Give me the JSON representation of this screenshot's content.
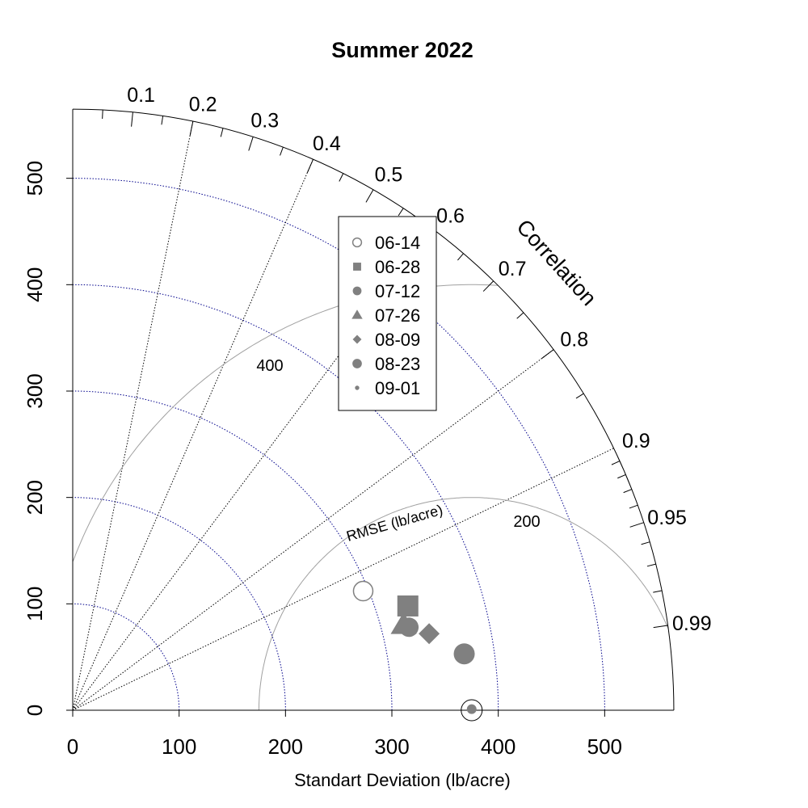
{
  "chart_data": {
    "type": "taylor",
    "title": "Summer 2022",
    "xlabel": "Standart Deviation (lb/acre)",
    "ylabel": "",
    "correlation_label": "Correlation",
    "rmse_label": "RMSE (lb/acre)",
    "sd_range": [
      0,
      565
    ],
    "sd_ticks": [
      0,
      100,
      200,
      300,
      400,
      500
    ],
    "sd_tick_labels": [
      "0",
      "100",
      "200",
      "300",
      "400",
      "500"
    ],
    "sd_arcs": [
      100,
      200,
      300,
      400,
      500
    ],
    "correlation_ticks": [
      0.1,
      0.2,
      0.3,
      0.4,
      0.5,
      0.6,
      0.7,
      0.8,
      0.9,
      0.95,
      0.99
    ],
    "correlation_tick_labels": [
      "0.1",
      "0.2",
      "0.3",
      "0.4",
      "0.5",
      "0.6",
      "0.7",
      "0.8",
      "0.9",
      "0.95",
      "0.99"
    ],
    "correlation_rays": [
      0.2,
      0.4,
      0.6,
      0.8,
      0.9
    ],
    "reference": {
      "sd": 375
    },
    "rmse_arcs": [
      200,
      400
    ],
    "rmse_arc_labels": [
      "200",
      "400"
    ],
    "legend_placement": "top-center",
    "points": [
      {
        "name": "06-14",
        "marker": "open-circle",
        "x": 273,
        "y": 112
      },
      {
        "name": "06-28",
        "marker": "square",
        "x": 315,
        "y": 98
      },
      {
        "name": "07-12",
        "marker": "circle",
        "x": 316,
        "y": 78
      },
      {
        "name": "07-26",
        "marker": "triangle",
        "x": 311,
        "y": 80
      },
      {
        "name": "08-09",
        "marker": "diamond",
        "x": 335,
        "y": 72
      },
      {
        "name": "08-23",
        "marker": "circle-large",
        "x": 368,
        "y": 53
      },
      {
        "name": "09-01",
        "marker": "small-dot",
        "x": 375,
        "y": 1
      }
    ]
  },
  "colors": {
    "marker": "#808080",
    "sd_arc": "#00008b",
    "rmse_arc": "#a0a0a0",
    "axis": "#000000"
  }
}
